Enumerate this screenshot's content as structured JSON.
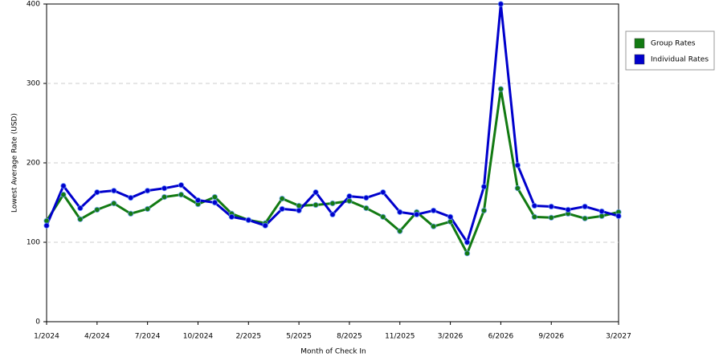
{
  "chart_data": {
    "type": "line",
    "x_label": "Month of Check In",
    "y_label": "Lowest Average Rate (USD)",
    "categories": [
      "1/2024",
      null,
      null,
      "4/2024",
      null,
      null,
      "7/2024",
      null,
      null,
      "10/2024",
      null,
      null,
      "2/2025",
      null,
      null,
      "5/2025",
      null,
      null,
      "8/2025",
      null,
      null,
      "11/2025",
      null,
      null,
      "3/2026",
      null,
      null,
      "6/2026",
      null,
      null,
      "9/2026",
      null,
      null,
      null,
      "3/2027"
    ],
    "series": [
      {
        "name": "Group Rates",
        "color": "#127a12",
        "values": [
          127,
          160,
          129,
          141,
          149,
          136,
          142,
          157,
          160,
          148,
          157,
          136,
          128,
          124,
          155,
          146,
          147,
          149,
          152,
          143,
          132,
          114,
          138,
          120,
          126,
          86,
          140,
          293,
          168,
          132,
          131,
          136,
          130,
          133,
          138
        ]
      },
      {
        "name": "Individual Rates",
        "color": "#0000cc",
        "values": [
          121,
          171,
          143,
          163,
          165,
          156,
          165,
          168,
          172,
          153,
          150,
          132,
          128,
          121,
          142,
          140,
          163,
          135,
          158,
          156,
          163,
          138,
          135,
          140,
          132,
          100,
          170,
          400,
          197,
          146,
          145,
          141,
          145,
          139,
          133
        ]
      }
    ],
    "ylim": [
      0,
      400
    ],
    "yticks": [
      0,
      100,
      200,
      300,
      400
    ],
    "grid": true,
    "legend": "right"
  }
}
